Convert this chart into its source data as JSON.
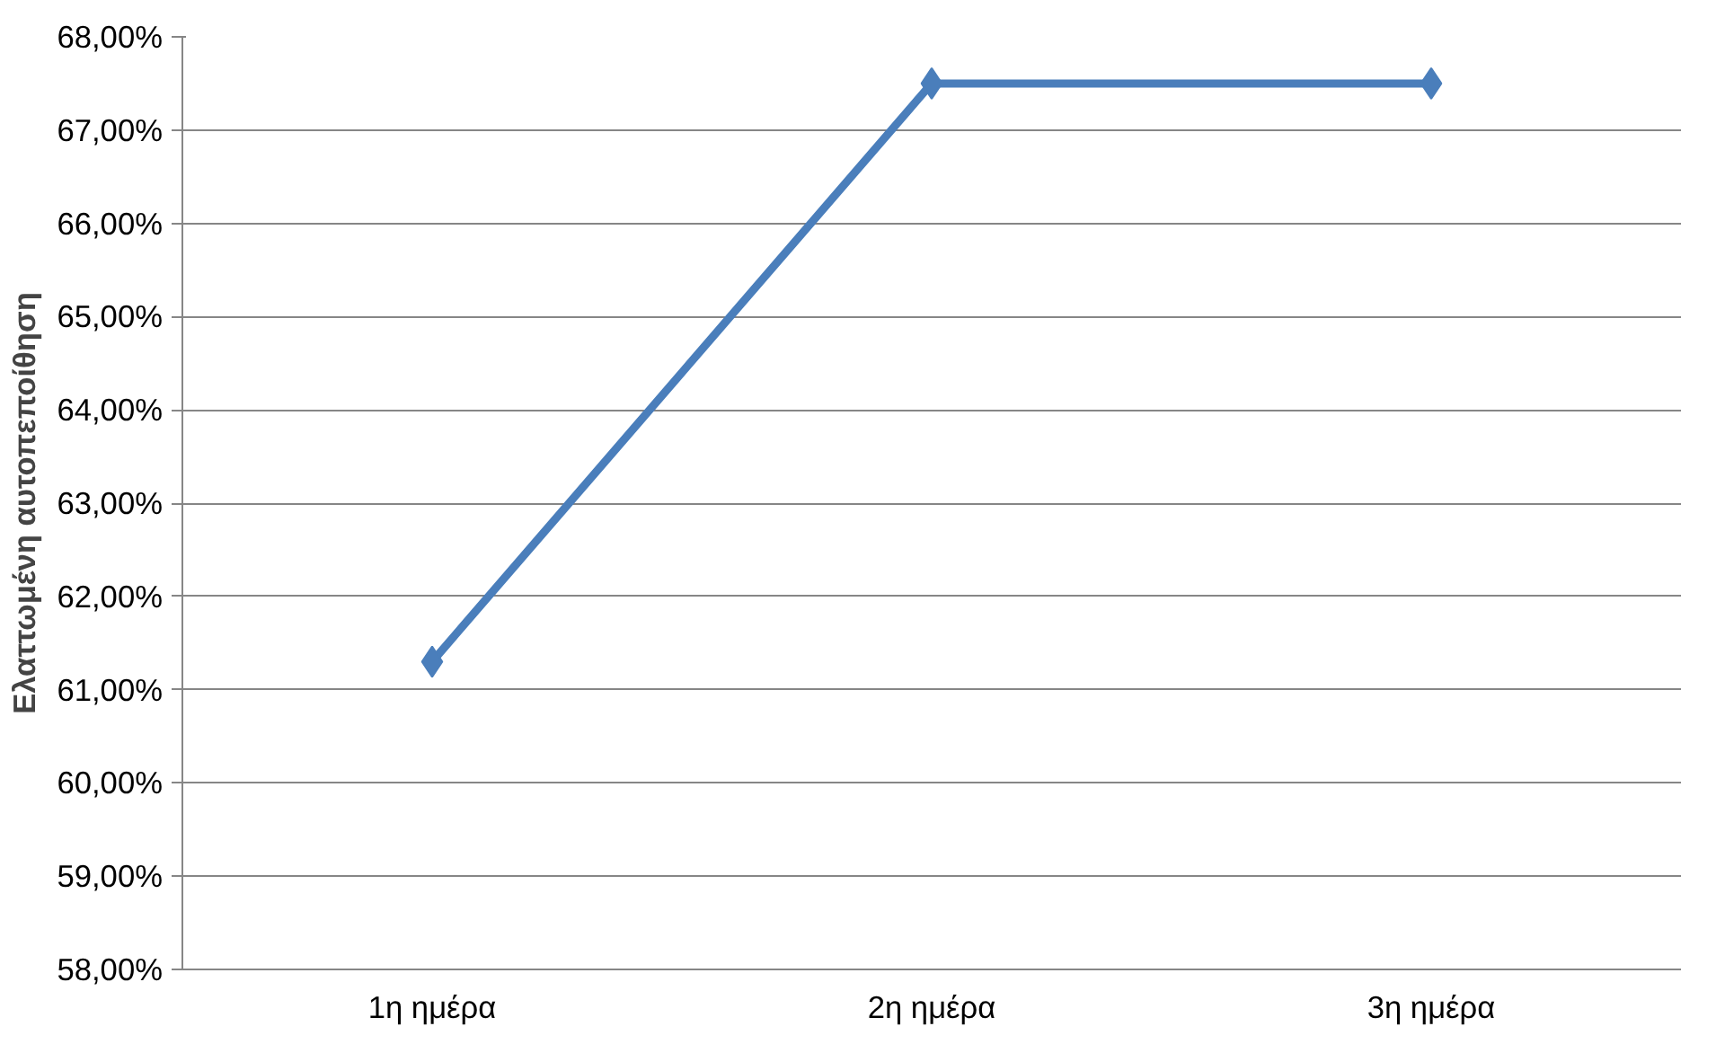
{
  "chart_data": {
    "type": "line",
    "ylabel": "Ελαττωμένη αυτοπεποίθηση",
    "categories": [
      "1η ημέρα",
      "2η ημέρα",
      "3η ημέρα"
    ],
    "series": [
      {
        "color": "#4a7ebb",
        "values": [
          61.3,
          67.5,
          67.5
        ]
      }
    ],
    "ylim": [
      58,
      68
    ],
    "yticks": [
      {
        "value": 58,
        "label": "58,00%"
      },
      {
        "value": 59,
        "label": "59,00%"
      },
      {
        "value": 60,
        "label": "60,00%"
      },
      {
        "value": 61,
        "label": "61,00%"
      },
      {
        "value": 62,
        "label": "62,00%"
      },
      {
        "value": 63,
        "label": "63,00%"
      },
      {
        "value": 64,
        "label": "64,00%"
      },
      {
        "value": 65,
        "label": "65,00%"
      },
      {
        "value": 66,
        "label": "66,00%"
      },
      {
        "value": 67,
        "label": "67,00%"
      },
      {
        "value": 68,
        "label": "68,00%"
      }
    ],
    "grid": "y",
    "marker": "diamond",
    "line_style": "solid"
  }
}
